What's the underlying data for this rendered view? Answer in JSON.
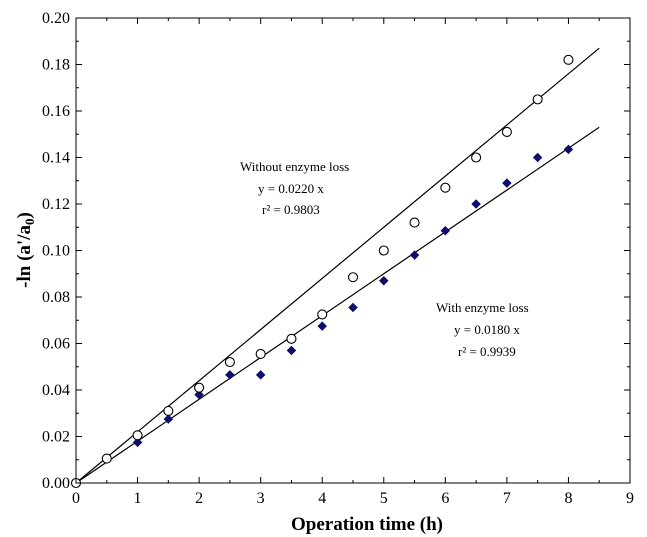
{
  "chart_data": {
    "type": "scatter",
    "xlabel": "Operation time (h)",
    "ylabel": "-ln (a'/a₀)",
    "xlim": [
      0,
      9
    ],
    "ylim": [
      0,
      0.2
    ],
    "xticks": [
      "0",
      "1",
      "2",
      "3",
      "4",
      "5",
      "6",
      "7",
      "8",
      "9"
    ],
    "yticks": [
      "0.00",
      "0.02",
      "0.04",
      "0.06",
      "0.08",
      "0.10",
      "0.12",
      "0.14",
      "0.16",
      "0.18",
      "0.20"
    ],
    "grid": false,
    "series": [
      {
        "marker": "open-circle",
        "color": "#000000",
        "x": [
          0,
          0.5,
          1,
          1.5,
          2,
          2.5,
          3,
          3.5,
          4,
          4.5,
          5,
          5.5,
          6,
          6.5,
          7,
          7.5,
          8
        ],
        "y": [
          0,
          0.0105,
          0.0205,
          0.031,
          0.041,
          0.052,
          0.0555,
          0.062,
          0.0725,
          0.0885,
          0.1,
          0.112,
          0.127,
          0.14,
          0.151,
          0.165,
          0.182
        ],
        "fit": {
          "slope": 0.022,
          "x_range": [
            0,
            8.5
          ]
        }
      },
      {
        "marker": "filled-diamond",
        "color": "#0d0d6b",
        "x": [
          0,
          0.5,
          1,
          1.5,
          2,
          2.5,
          3,
          3.5,
          4,
          4.5,
          5,
          5.5,
          6,
          6.5,
          7,
          7.5,
          8
        ],
        "y": [
          0,
          0.0105,
          0.0175,
          0.0275,
          0.038,
          0.0465,
          0.0465,
          0.057,
          0.0675,
          0.0755,
          0.087,
          0.098,
          0.1085,
          0.12,
          0.129,
          0.14,
          0.1435
        ],
        "fit": {
          "slope": 0.018,
          "x_range": [
            0,
            8.5
          ]
        }
      }
    ],
    "annotations": [
      {
        "lines": [
          "Without  enzyme loss",
          "y = 0.0220 x",
          "r² = 0.9803"
        ]
      },
      {
        "lines": [
          "With enzyme loss",
          "y = 0.0180 x",
          "r² = 0.9939"
        ]
      }
    ]
  }
}
